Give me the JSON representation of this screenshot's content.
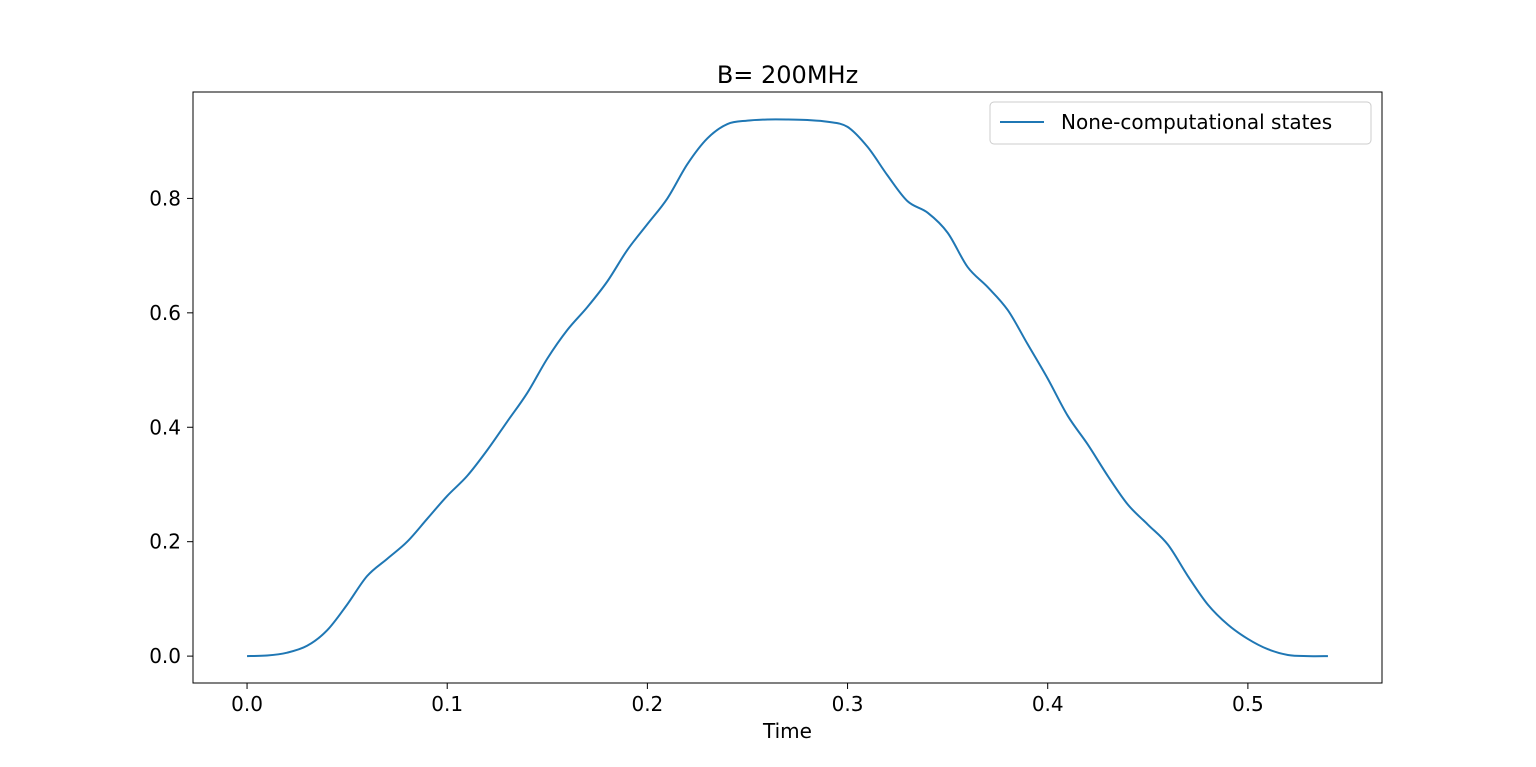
{
  "chart_data": {
    "type": "line",
    "title": "B= 200MHz",
    "xlabel": "Time",
    "ylabel": "",
    "xlim": [
      -0.027,
      0.567
    ],
    "ylim": [
      -0.047,
      0.986
    ],
    "xticks": [
      0.0,
      0.1,
      0.2,
      0.3,
      0.4,
      0.5
    ],
    "xtick_labels": [
      "0.0",
      "0.1",
      "0.2",
      "0.3",
      "0.4",
      "0.5"
    ],
    "yticks": [
      0.0,
      0.2,
      0.4,
      0.6,
      0.8
    ],
    "ytick_labels": [
      "0.0",
      "0.2",
      "0.4",
      "0.6",
      "0.8"
    ],
    "grid": false,
    "legend_position": "top-right",
    "series": [
      {
        "name": "None-computational states",
        "color": "#1f77b4",
        "x": [
          0.0,
          0.01,
          0.02,
          0.03,
          0.04,
          0.05,
          0.06,
          0.07,
          0.08,
          0.09,
          0.1,
          0.11,
          0.12,
          0.13,
          0.14,
          0.15,
          0.16,
          0.17,
          0.18,
          0.19,
          0.2,
          0.21,
          0.22,
          0.23,
          0.24,
          0.25,
          0.26,
          0.27,
          0.28,
          0.29,
          0.3,
          0.31,
          0.32,
          0.33,
          0.34,
          0.35,
          0.36,
          0.37,
          0.38,
          0.39,
          0.4,
          0.41,
          0.42,
          0.43,
          0.44,
          0.45,
          0.46,
          0.47,
          0.48,
          0.49,
          0.5,
          0.51,
          0.52,
          0.53,
          0.54
        ],
        "y": [
          0.0,
          0.001,
          0.006,
          0.018,
          0.045,
          0.09,
          0.14,
          0.17,
          0.2,
          0.24,
          0.28,
          0.315,
          0.36,
          0.41,
          0.46,
          0.52,
          0.57,
          0.61,
          0.655,
          0.71,
          0.755,
          0.8,
          0.86,
          0.905,
          0.93,
          0.936,
          0.938,
          0.938,
          0.937,
          0.934,
          0.925,
          0.89,
          0.84,
          0.795,
          0.775,
          0.74,
          0.68,
          0.645,
          0.605,
          0.545,
          0.485,
          0.42,
          0.37,
          0.315,
          0.265,
          0.23,
          0.195,
          0.14,
          0.09,
          0.055,
          0.03,
          0.012,
          0.002,
          0.0,
          0.0
        ]
      }
    ]
  }
}
